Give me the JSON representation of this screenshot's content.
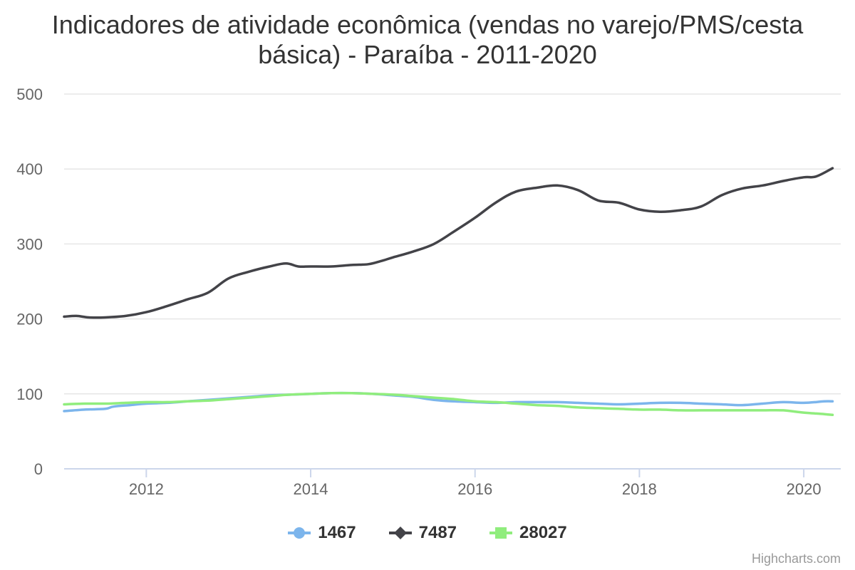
{
  "chart_data": {
    "type": "line",
    "title": "Indicadores de atividade econômica (vendas no varejo/PMS/cesta básica) - Paraíba - 2011-2020",
    "xlabel": "",
    "ylabel": "",
    "x_ticks": [
      "2012",
      "2014",
      "2016",
      "2018",
      "2020"
    ],
    "y_ticks": [
      "0",
      "100",
      "200",
      "300",
      "400",
      "500"
    ],
    "ylim": [
      0,
      500
    ],
    "xlim": [
      2011.0,
      2020.45
    ],
    "grid": true,
    "legend_position": "bottom-center",
    "series": [
      {
        "name": "1467",
        "color": "#7cb5ec",
        "marker": "circle",
        "points": [
          [
            2011.0,
            77
          ],
          [
            2011.25,
            79
          ],
          [
            2011.5,
            80
          ],
          [
            2011.6,
            83
          ],
          [
            2011.8,
            85
          ],
          [
            2012.0,
            87
          ],
          [
            2012.25,
            88
          ],
          [
            2012.5,
            90
          ],
          [
            2012.75,
            92
          ],
          [
            2013.0,
            94
          ],
          [
            2013.25,
            96
          ],
          [
            2013.5,
            98
          ],
          [
            2013.75,
            99
          ],
          [
            2014.0,
            100
          ],
          [
            2014.25,
            101
          ],
          [
            2014.5,
            101
          ],
          [
            2014.75,
            100
          ],
          [
            2015.0,
            98
          ],
          [
            2015.25,
            96
          ],
          [
            2015.5,
            92
          ],
          [
            2015.75,
            90
          ],
          [
            2016.0,
            89
          ],
          [
            2016.25,
            88
          ],
          [
            2016.5,
            89
          ],
          [
            2016.75,
            89
          ],
          [
            2017.0,
            89
          ],
          [
            2017.25,
            88
          ],
          [
            2017.5,
            87
          ],
          [
            2017.75,
            86
          ],
          [
            2018.0,
            87
          ],
          [
            2018.25,
            88
          ],
          [
            2018.5,
            88
          ],
          [
            2018.75,
            87
          ],
          [
            2019.0,
            86
          ],
          [
            2019.25,
            85
          ],
          [
            2019.5,
            87
          ],
          [
            2019.75,
            89
          ],
          [
            2020.0,
            88
          ],
          [
            2020.25,
            90
          ],
          [
            2020.35,
            90
          ]
        ]
      },
      {
        "name": "7487",
        "color": "#434348",
        "marker": "diamond",
        "points": [
          [
            2011.0,
            203
          ],
          [
            2011.15,
            204
          ],
          [
            2011.3,
            202
          ],
          [
            2011.5,
            202
          ],
          [
            2011.75,
            204
          ],
          [
            2012.0,
            209
          ],
          [
            2012.25,
            217
          ],
          [
            2012.5,
            226
          ],
          [
            2012.75,
            235
          ],
          [
            2013.0,
            254
          ],
          [
            2013.25,
            263
          ],
          [
            2013.5,
            270
          ],
          [
            2013.7,
            274
          ],
          [
            2013.85,
            270
          ],
          [
            2014.0,
            270
          ],
          [
            2014.25,
            270
          ],
          [
            2014.5,
            272
          ],
          [
            2014.7,
            273
          ],
          [
            2014.85,
            277
          ],
          [
            2015.0,
            282
          ],
          [
            2015.25,
            290
          ],
          [
            2015.5,
            300
          ],
          [
            2015.75,
            317
          ],
          [
            2016.0,
            335
          ],
          [
            2016.25,
            355
          ],
          [
            2016.5,
            370
          ],
          [
            2016.75,
            375
          ],
          [
            2017.0,
            378
          ],
          [
            2017.25,
            372
          ],
          [
            2017.5,
            358
          ],
          [
            2017.75,
            355
          ],
          [
            2018.0,
            346
          ],
          [
            2018.25,
            343
          ],
          [
            2018.5,
            345
          ],
          [
            2018.75,
            350
          ],
          [
            2019.0,
            365
          ],
          [
            2019.25,
            374
          ],
          [
            2019.5,
            378
          ],
          [
            2019.75,
            384
          ],
          [
            2020.0,
            389
          ],
          [
            2020.15,
            390
          ],
          [
            2020.35,
            401
          ]
        ]
      },
      {
        "name": "28027",
        "color": "#90ed7d",
        "marker": "square",
        "points": [
          [
            2011.0,
            86
          ],
          [
            2011.25,
            87
          ],
          [
            2011.5,
            87
          ],
          [
            2011.75,
            88
          ],
          [
            2012.0,
            89
          ],
          [
            2012.25,
            89
          ],
          [
            2012.5,
            90
          ],
          [
            2012.75,
            91
          ],
          [
            2013.0,
            93
          ],
          [
            2013.25,
            95
          ],
          [
            2013.5,
            97
          ],
          [
            2013.75,
            99
          ],
          [
            2014.0,
            100
          ],
          [
            2014.25,
            101
          ],
          [
            2014.5,
            101
          ],
          [
            2014.75,
            100
          ],
          [
            2015.0,
            99
          ],
          [
            2015.25,
            97
          ],
          [
            2015.5,
            95
          ],
          [
            2015.75,
            93
          ],
          [
            2016.0,
            90
          ],
          [
            2016.25,
            89
          ],
          [
            2016.5,
            87
          ],
          [
            2016.75,
            85
          ],
          [
            2017.0,
            84
          ],
          [
            2017.25,
            82
          ],
          [
            2017.5,
            81
          ],
          [
            2017.75,
            80
          ],
          [
            2018.0,
            79
          ],
          [
            2018.25,
            79
          ],
          [
            2018.5,
            78
          ],
          [
            2018.75,
            78
          ],
          [
            2019.0,
            78
          ],
          [
            2019.25,
            78
          ],
          [
            2019.5,
            78
          ],
          [
            2019.75,
            78
          ],
          [
            2020.0,
            75
          ],
          [
            2020.25,
            73
          ],
          [
            2020.35,
            72
          ]
        ]
      }
    ]
  },
  "credits": "Highcharts.com"
}
